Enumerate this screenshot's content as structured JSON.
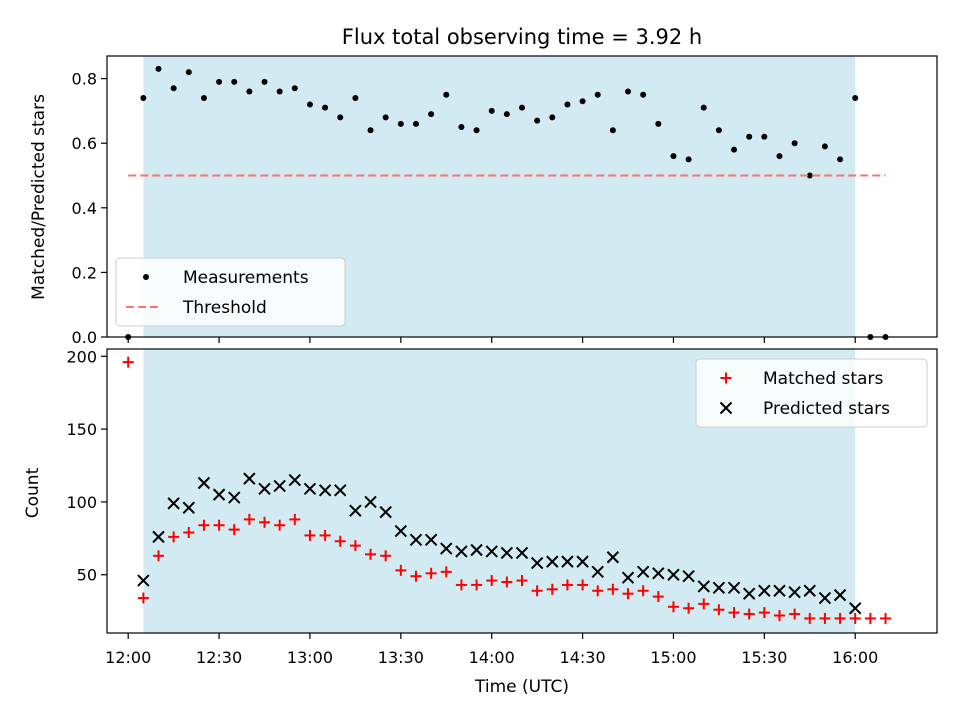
{
  "chart_data": [
    {
      "type": "scatter",
      "title": "Flux total observing time = 3.92 h",
      "xlabel": "",
      "ylabel": "Matched/Predicted stars",
      "xlim": [
        "11:53",
        "16:27"
      ],
      "ylim": [
        0,
        0.87
      ],
      "y_ticks": [
        0.0,
        0.2,
        0.4,
        0.6,
        0.8
      ],
      "y_tick_labels": [
        "0.0",
        "0.2",
        "0.4",
        "0.6",
        "0.8"
      ],
      "shaded_span": [
        "12:05",
        "16:00"
      ],
      "shade_color": "#add8e6",
      "legend": {
        "position": "lower-left",
        "entries": [
          "Measurements",
          "Threshold"
        ]
      },
      "series": [
        {
          "name": "Measurements",
          "marker": "dot",
          "color": "#000000",
          "x": [
            "12:00",
            "12:05",
            "12:10",
            "12:15",
            "12:20",
            "12:25",
            "12:30",
            "12:35",
            "12:40",
            "12:45",
            "12:50",
            "12:55",
            "13:00",
            "13:05",
            "13:10",
            "13:15",
            "13:20",
            "13:25",
            "13:30",
            "13:35",
            "13:40",
            "13:45",
            "13:50",
            "13:55",
            "14:00",
            "14:05",
            "14:10",
            "14:15",
            "14:20",
            "14:25",
            "14:30",
            "14:35",
            "14:40",
            "14:45",
            "14:50",
            "14:55",
            "15:00",
            "15:05",
            "15:10",
            "15:15",
            "15:20",
            "15:25",
            "15:30",
            "15:35",
            "15:40",
            "15:45",
            "15:50",
            "15:55",
            "16:00",
            "16:05",
            "16:10"
          ],
          "y": [
            0.0,
            0.74,
            0.83,
            0.77,
            0.82,
            0.74,
            0.79,
            0.79,
            0.76,
            0.79,
            0.76,
            0.77,
            0.72,
            0.71,
            0.68,
            0.74,
            0.64,
            0.68,
            0.66,
            0.66,
            0.69,
            0.75,
            0.65,
            0.64,
            0.7,
            0.69,
            0.71,
            0.67,
            0.68,
            0.72,
            0.73,
            0.75,
            0.64,
            0.76,
            0.75,
            0.66,
            0.56,
            0.55,
            0.71,
            0.64,
            0.58,
            0.62,
            0.62,
            0.56,
            0.6,
            0.5,
            0.59,
            0.55,
            0.74,
            0.0,
            0.0
          ]
        },
        {
          "name": "Threshold",
          "style": "dashed",
          "color": "#ff7070",
          "x": [
            "12:00",
            "16:10"
          ],
          "y": [
            0.5,
            0.5
          ]
        }
      ]
    },
    {
      "type": "scatter",
      "title": "",
      "xlabel": "Time (UTC)",
      "ylabel": "Count",
      "xlim": [
        "11:53",
        "16:27"
      ],
      "ylim": [
        10,
        205
      ],
      "y_ticks": [
        50,
        100,
        150,
        200
      ],
      "y_tick_labels": [
        "50",
        "100",
        "150",
        "200"
      ],
      "x_ticks": [
        "12:00",
        "12:30",
        "13:00",
        "13:30",
        "14:00",
        "14:30",
        "15:00",
        "15:30",
        "16:00"
      ],
      "x_tick_labels": [
        "12:00",
        "12:30",
        "13:00",
        "13:30",
        "14:00",
        "14:30",
        "15:00",
        "15:30",
        "16:00"
      ],
      "shaded_span": [
        "12:05",
        "16:00"
      ],
      "shade_color": "#add8e6",
      "legend": {
        "position": "upper-right",
        "entries": [
          "Matched stars",
          "Predicted stars"
        ]
      },
      "series": [
        {
          "name": "Matched stars",
          "marker": "plus",
          "color": "#ff0000",
          "x": [
            "12:00",
            "12:05",
            "12:10",
            "12:15",
            "12:20",
            "12:25",
            "12:30",
            "12:35",
            "12:40",
            "12:45",
            "12:50",
            "12:55",
            "13:00",
            "13:05",
            "13:10",
            "13:15",
            "13:20",
            "13:25",
            "13:30",
            "13:35",
            "13:40",
            "13:45",
            "13:50",
            "13:55",
            "14:00",
            "14:05",
            "14:10",
            "14:15",
            "14:20",
            "14:25",
            "14:30",
            "14:35",
            "14:40",
            "14:45",
            "14:50",
            "14:55",
            "15:00",
            "15:05",
            "15:10",
            "15:15",
            "15:20",
            "15:25",
            "15:30",
            "15:35",
            "15:40",
            "15:45",
            "15:50",
            "15:55",
            "16:00",
            "16:05",
            "16:10"
          ],
          "y": [
            196,
            34,
            63,
            76,
            79,
            84,
            84,
            81,
            88,
            86,
            84,
            88,
            77,
            77,
            73,
            70,
            64,
            63,
            53,
            49,
            51,
            52,
            43,
            43,
            46,
            45,
            46,
            39,
            40,
            43,
            43,
            39,
            40,
            37,
            39,
            35,
            28,
            27,
            30,
            26,
            24,
            23,
            24,
            22,
            23,
            20,
            20,
            20,
            20,
            20,
            20
          ]
        },
        {
          "name": "Predicted stars",
          "marker": "x",
          "color": "#000000",
          "x": [
            "12:05",
            "12:10",
            "12:15",
            "12:20",
            "12:25",
            "12:30",
            "12:35",
            "12:40",
            "12:45",
            "12:50",
            "12:55",
            "13:00",
            "13:05",
            "13:10",
            "13:15",
            "13:20",
            "13:25",
            "13:30",
            "13:35",
            "13:40",
            "13:45",
            "13:50",
            "13:55",
            "14:00",
            "14:05",
            "14:10",
            "14:15",
            "14:20",
            "14:25",
            "14:30",
            "14:35",
            "14:40",
            "14:45",
            "14:50",
            "14:55",
            "15:00",
            "15:05",
            "15:10",
            "15:15",
            "15:20",
            "15:25",
            "15:30",
            "15:35",
            "15:40",
            "15:45",
            "15:50",
            "15:55",
            "16:00"
          ],
          "y": [
            46,
            76,
            99,
            96,
            113,
            105,
            103,
            116,
            109,
            111,
            115,
            109,
            108,
            108,
            94,
            100,
            93,
            80,
            74,
            74,
            68,
            66,
            67,
            66,
            65,
            65,
            58,
            59,
            59,
            59,
            52,
            62,
            48,
            52,
            51,
            50,
            49,
            42,
            41,
            41,
            37,
            39,
            39,
            38,
            39,
            34,
            36,
            27
          ]
        }
      ]
    }
  ]
}
